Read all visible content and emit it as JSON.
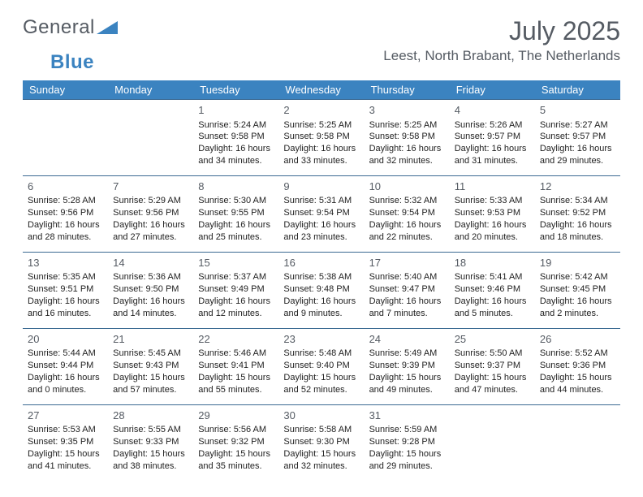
{
  "logo": {
    "word1": "General",
    "word2": "Blue"
  },
  "title": "July 2025",
  "location": "Leest, North Brabant, The Netherlands",
  "colors": {
    "header_bg": "#3b83c0",
    "header_text": "#ffffff",
    "border": "#3b6a92",
    "title_color": "#555b63"
  },
  "weekdays": [
    "Sunday",
    "Monday",
    "Tuesday",
    "Wednesday",
    "Thursday",
    "Friday",
    "Saturday"
  ],
  "weeks": [
    [
      null,
      null,
      {
        "n": "1",
        "sr": "5:24 AM",
        "ss": "9:58 PM",
        "dl": "16 hours and 34 minutes."
      },
      {
        "n": "2",
        "sr": "5:25 AM",
        "ss": "9:58 PM",
        "dl": "16 hours and 33 minutes."
      },
      {
        "n": "3",
        "sr": "5:25 AM",
        "ss": "9:58 PM",
        "dl": "16 hours and 32 minutes."
      },
      {
        "n": "4",
        "sr": "5:26 AM",
        "ss": "9:57 PM",
        "dl": "16 hours and 31 minutes."
      },
      {
        "n": "5",
        "sr": "5:27 AM",
        "ss": "9:57 PM",
        "dl": "16 hours and 29 minutes."
      }
    ],
    [
      {
        "n": "6",
        "sr": "5:28 AM",
        "ss": "9:56 PM",
        "dl": "16 hours and 28 minutes."
      },
      {
        "n": "7",
        "sr": "5:29 AM",
        "ss": "9:56 PM",
        "dl": "16 hours and 27 minutes."
      },
      {
        "n": "8",
        "sr": "5:30 AM",
        "ss": "9:55 PM",
        "dl": "16 hours and 25 minutes."
      },
      {
        "n": "9",
        "sr": "5:31 AM",
        "ss": "9:54 PM",
        "dl": "16 hours and 23 minutes."
      },
      {
        "n": "10",
        "sr": "5:32 AM",
        "ss": "9:54 PM",
        "dl": "16 hours and 22 minutes."
      },
      {
        "n": "11",
        "sr": "5:33 AM",
        "ss": "9:53 PM",
        "dl": "16 hours and 20 minutes."
      },
      {
        "n": "12",
        "sr": "5:34 AM",
        "ss": "9:52 PM",
        "dl": "16 hours and 18 minutes."
      }
    ],
    [
      {
        "n": "13",
        "sr": "5:35 AM",
        "ss": "9:51 PM",
        "dl": "16 hours and 16 minutes."
      },
      {
        "n": "14",
        "sr": "5:36 AM",
        "ss": "9:50 PM",
        "dl": "16 hours and 14 minutes."
      },
      {
        "n": "15",
        "sr": "5:37 AM",
        "ss": "9:49 PM",
        "dl": "16 hours and 12 minutes."
      },
      {
        "n": "16",
        "sr": "5:38 AM",
        "ss": "9:48 PM",
        "dl": "16 hours and 9 minutes."
      },
      {
        "n": "17",
        "sr": "5:40 AM",
        "ss": "9:47 PM",
        "dl": "16 hours and 7 minutes."
      },
      {
        "n": "18",
        "sr": "5:41 AM",
        "ss": "9:46 PM",
        "dl": "16 hours and 5 minutes."
      },
      {
        "n": "19",
        "sr": "5:42 AM",
        "ss": "9:45 PM",
        "dl": "16 hours and 2 minutes."
      }
    ],
    [
      {
        "n": "20",
        "sr": "5:44 AM",
        "ss": "9:44 PM",
        "dl": "16 hours and 0 minutes."
      },
      {
        "n": "21",
        "sr": "5:45 AM",
        "ss": "9:43 PM",
        "dl": "15 hours and 57 minutes."
      },
      {
        "n": "22",
        "sr": "5:46 AM",
        "ss": "9:41 PM",
        "dl": "15 hours and 55 minutes."
      },
      {
        "n": "23",
        "sr": "5:48 AM",
        "ss": "9:40 PM",
        "dl": "15 hours and 52 minutes."
      },
      {
        "n": "24",
        "sr": "5:49 AM",
        "ss": "9:39 PM",
        "dl": "15 hours and 49 minutes."
      },
      {
        "n": "25",
        "sr": "5:50 AM",
        "ss": "9:37 PM",
        "dl": "15 hours and 47 minutes."
      },
      {
        "n": "26",
        "sr": "5:52 AM",
        "ss": "9:36 PM",
        "dl": "15 hours and 44 minutes."
      }
    ],
    [
      {
        "n": "27",
        "sr": "5:53 AM",
        "ss": "9:35 PM",
        "dl": "15 hours and 41 minutes."
      },
      {
        "n": "28",
        "sr": "5:55 AM",
        "ss": "9:33 PM",
        "dl": "15 hours and 38 minutes."
      },
      {
        "n": "29",
        "sr": "5:56 AM",
        "ss": "9:32 PM",
        "dl": "15 hours and 35 minutes."
      },
      {
        "n": "30",
        "sr": "5:58 AM",
        "ss": "9:30 PM",
        "dl": "15 hours and 32 minutes."
      },
      {
        "n": "31",
        "sr": "5:59 AM",
        "ss": "9:28 PM",
        "dl": "15 hours and 29 minutes."
      },
      null,
      null
    ]
  ],
  "labels": {
    "sunrise": "Sunrise: ",
    "sunset": "Sunset: ",
    "daylight": "Daylight: "
  }
}
